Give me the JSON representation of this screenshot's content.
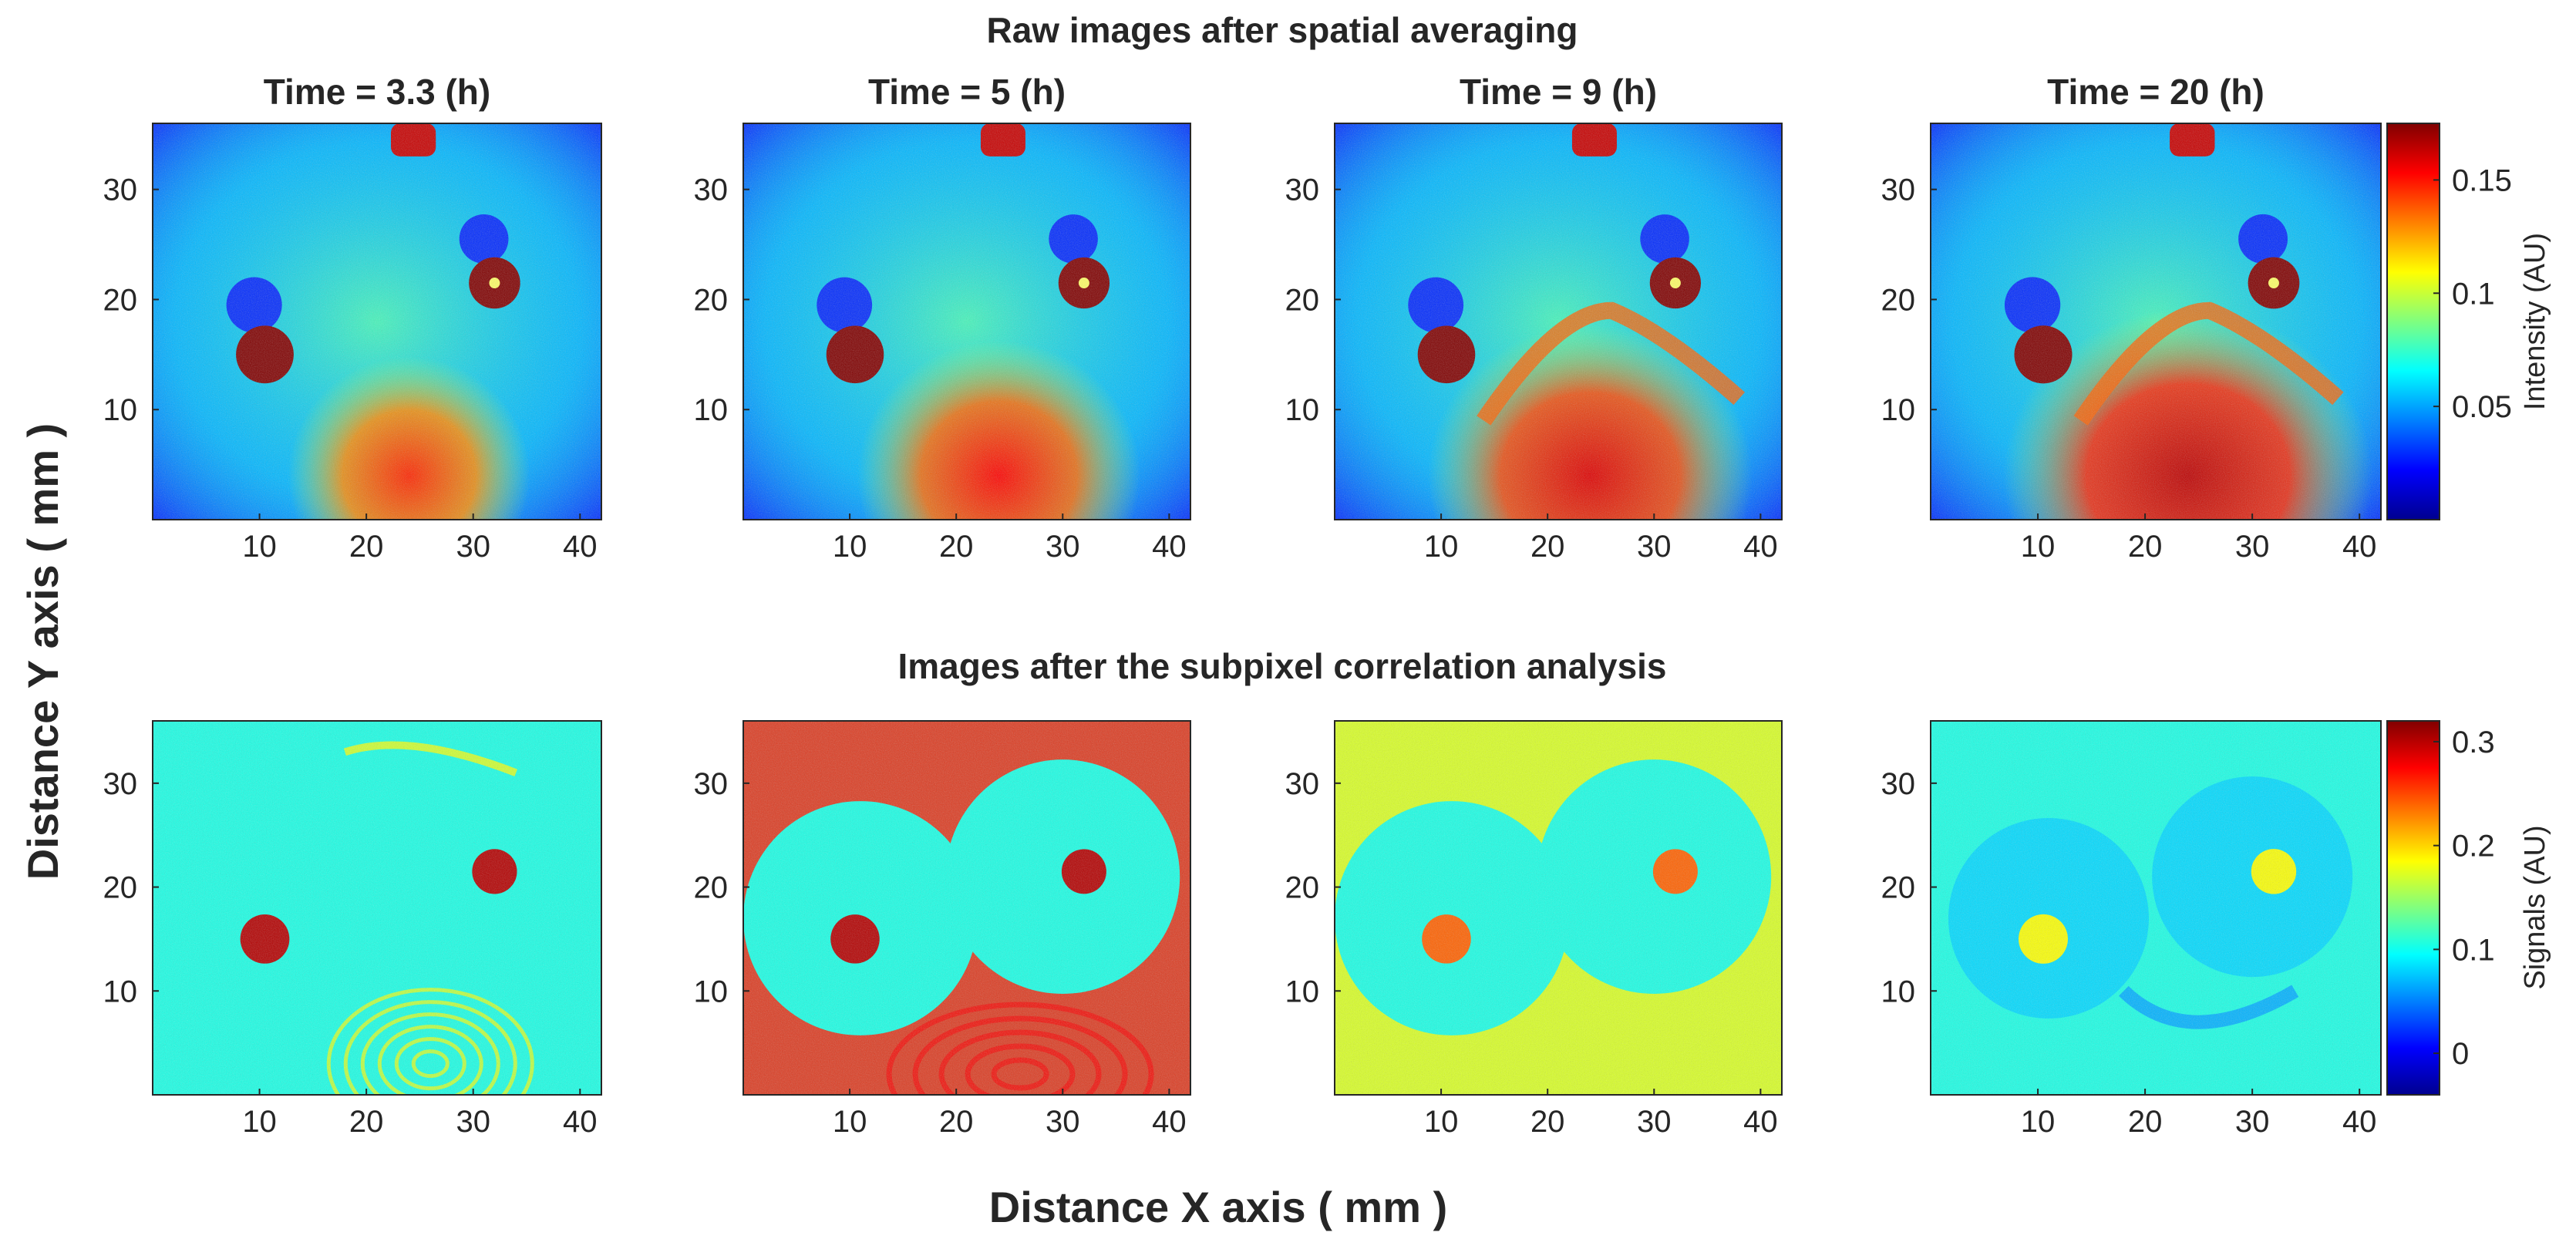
{
  "figure": {
    "row_titles": [
      "Raw images after spatial averaging",
      "Images after the subpixel correlation analysis"
    ],
    "panel_titles": [
      "Time = 3.3 (h)",
      "Time = 5 (h)",
      "Time = 9 (h)",
      "Time = 20 (h)"
    ],
    "xlabel": "Distance X axis ( mm )",
    "ylabel": "Distance Y axis ( mm )"
  },
  "colors": {
    "colormap": "jet",
    "jet_stops": [
      "#00008f",
      "#0000ff",
      "#00ffff",
      "#ffff00",
      "#ff0000",
      "#800000"
    ],
    "axes_box": "#262626"
  },
  "chart_data": [
    {
      "type": "heatmap",
      "row": 1,
      "title": "Raw images after spatial averaging",
      "panels": [
        {
          "title": "Time = 3.3 (h)",
          "time_h": 3.3
        },
        {
          "title": "Time = 5 (h)",
          "time_h": 5
        },
        {
          "title": "Time = 9 (h)",
          "time_h": 9
        },
        {
          "title": "Time = 20 (h)",
          "time_h": 20
        }
      ],
      "xlim": [
        0,
        42
      ],
      "ylim": [
        0,
        36
      ],
      "xticks": [
        10,
        20,
        30,
        40
      ],
      "yticks": [
        10,
        20,
        30
      ],
      "colorbar": {
        "label": "Intensity (AU)",
        "range": [
          0,
          0.175
        ],
        "ticks": [
          0.05,
          0.1,
          0.15
        ],
        "tick_labels": [
          "0.05",
          "0.1",
          "0.15"
        ]
      },
      "features": [
        {
          "name": "saturated well (left)",
          "x": 10.5,
          "y": 15,
          "radius": 2.7
        },
        {
          "name": "saturated well (right)",
          "x": 32,
          "y": 21.5,
          "radius": 2.4
        },
        {
          "name": "lower high-intensity region",
          "x": 24,
          "y": 6,
          "grows_with_time": true
        },
        {
          "name": "top hot spot",
          "x": 24,
          "y": 35
        }
      ]
    },
    {
      "type": "heatmap",
      "row": 2,
      "title": "Images after the subpixel correlation analysis",
      "panels": [
        {
          "time_h": 3.3
        },
        {
          "time_h": 5
        },
        {
          "time_h": 9
        },
        {
          "time_h": 20
        }
      ],
      "xlim": [
        0,
        42
      ],
      "ylim": [
        0,
        36
      ],
      "xticks": [
        10,
        20,
        30,
        40
      ],
      "yticks": [
        10,
        20,
        30
      ],
      "colorbar": {
        "label": "Signals (AU)",
        "range": [
          -0.04,
          0.32
        ],
        "ticks": [
          0,
          0.1,
          0.2,
          0.3
        ],
        "tick_labels": [
          "0",
          "0.1",
          "0.2",
          "0.3"
        ]
      },
      "features": [
        {
          "name": "circular zone (left)",
          "x": 11,
          "y": 17
        },
        {
          "name": "circular zone (right)",
          "x": 30,
          "y": 21
        },
        {
          "name": "ring pattern",
          "x": 26,
          "y": 3
        }
      ]
    }
  ]
}
